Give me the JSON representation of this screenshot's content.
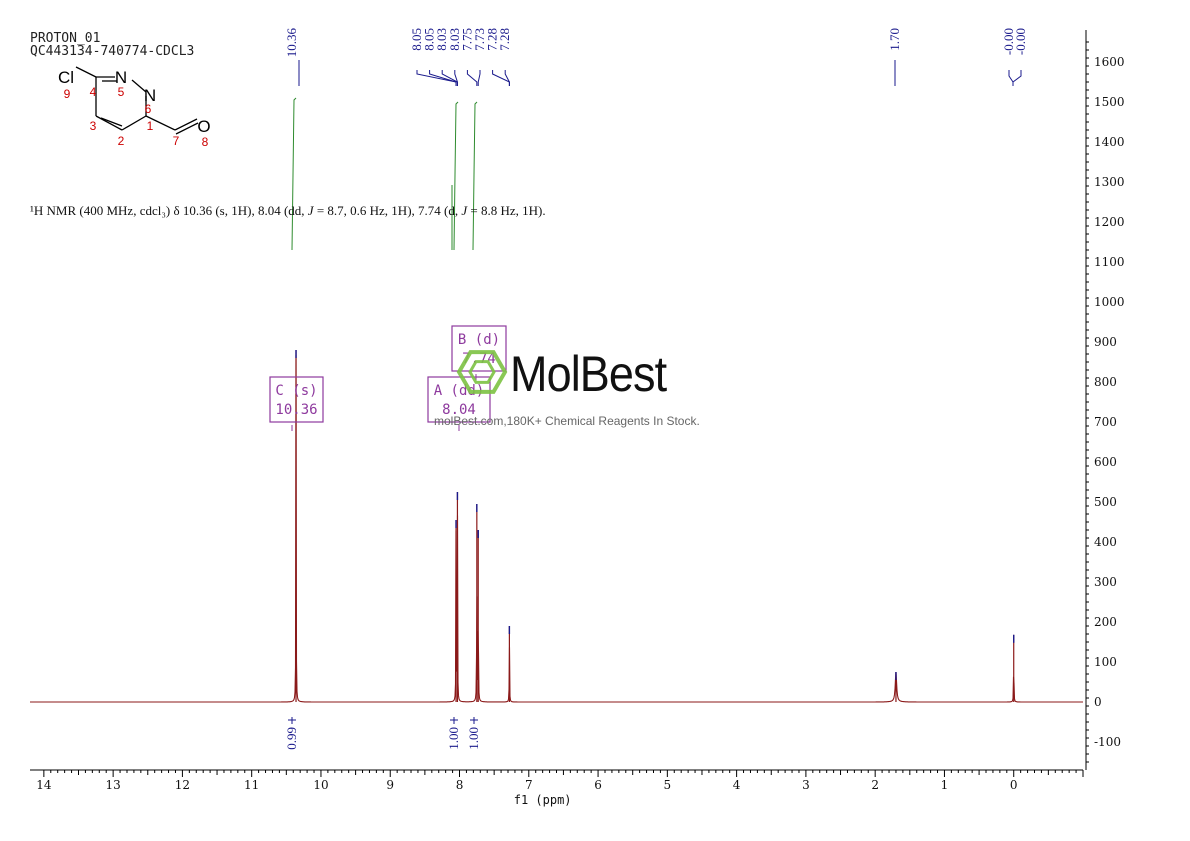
{
  "header": {
    "line1": "PROTON_01",
    "line2": "QC443134-740774-CDCL3"
  },
  "description": {
    "prefix": "¹H NMR (400 MHz, cdcl₃) δ 10.36 (s, 1H), 8.04 (dd, ",
    "j1": "J",
    "mid": " = 8.7, 0.6 Hz, 1H), 7.74 (d, ",
    "j2": "J",
    "suffix": " = 8.8 Hz, 1H)."
  },
  "watermark": {
    "logo": "MolBest",
    "tagline": "molBest.com,180K+ Chemical Reagents In Stock."
  },
  "structure": {
    "atoms": [
      "Cl",
      "N",
      "N",
      "O"
    ],
    "numbers": [
      "9",
      "4",
      "5",
      "6",
      "3",
      "1",
      "2",
      "7",
      "8"
    ]
  },
  "colors": {
    "spectrum": "#8b1a1a",
    "peak_labels": "#1a1a8c",
    "integral_curve": "#2e8b2e",
    "multiplet_box": "#8e3a9e",
    "atom_numbers": "#cc0000",
    "watermark_hex": "#7cc242"
  },
  "chart_data": {
    "type": "line",
    "xlabel": "f1 (ppm)",
    "ylabel": "",
    "x_range": [
      14.2,
      -1.0
    ],
    "y_range": [
      -170,
      1680
    ],
    "x_ticks": [
      14,
      13,
      12,
      11,
      10,
      9,
      8,
      7,
      6,
      5,
      4,
      3,
      2,
      1,
      0
    ],
    "y_ticks": [
      -100,
      0,
      100,
      200,
      300,
      400,
      500,
      600,
      700,
      800,
      900,
      1000,
      1100,
      1200,
      1300,
      1400,
      1500,
      1600
    ],
    "peaks": [
      {
        "ppm": 10.36,
        "height": 880
      },
      {
        "ppm": 8.05,
        "height": 455
      },
      {
        "ppm": 8.03,
        "height": 525
      },
      {
        "ppm": 7.75,
        "height": 495
      },
      {
        "ppm": 7.73,
        "height": 430
      },
      {
        "ppm": 7.28,
        "height": 190
      },
      {
        "ppm": 1.7,
        "height": 75
      },
      {
        "ppm": 0.0,
        "height": 168
      }
    ],
    "peak_labels": [
      "10.36",
      "8.05",
      "8.05",
      "8.03",
      "8.03",
      "7.75",
      "7.73",
      "7.28",
      "7.28",
      "1.70",
      "-0.00",
      "-0.00"
    ],
    "integrals": [
      {
        "ppm": 10.36,
        "value": "0.99"
      },
      {
        "ppm": 8.04,
        "value": "1.00"
      },
      {
        "ppm": 7.74,
        "value": "1.00"
      }
    ],
    "multiplets": [
      {
        "letter": "C",
        "mult": "(s)",
        "shift": "10.36"
      },
      {
        "letter": "A",
        "mult": "(dd)",
        "shift": "8.04"
      },
      {
        "letter": "B",
        "mult": "(d)",
        "shift": "7.74"
      }
    ]
  }
}
